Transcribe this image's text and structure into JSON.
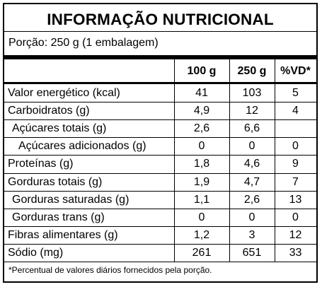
{
  "title": "INFORMAÇÃO NUTRICIONAL",
  "serving": "Porção: 250 g (1 embalagem)",
  "headers": [
    "100 g",
    "250 g",
    "%VD*"
  ],
  "rows": [
    {
      "name": "Valor energético (kcal)",
      "indent": 0,
      "c1": "41",
      "c2": "103",
      "c3": "5"
    },
    {
      "name": "Carboidratos (g)",
      "indent": 0,
      "c1": "4,9",
      "c2": "12",
      "c3": "4"
    },
    {
      "name": "Açúcares totais (g)",
      "indent": 1,
      "c1": "2,6",
      "c2": "6,6",
      "c3": ""
    },
    {
      "name": "Açúcares adicionados (g)",
      "indent": 2,
      "c1": "0",
      "c2": "0",
      "c3": "0"
    },
    {
      "name": "Proteínas (g)",
      "indent": 0,
      "c1": "1,8",
      "c2": "4,6",
      "c3": "9"
    },
    {
      "name": "Gorduras totais (g)",
      "indent": 0,
      "c1": "1,9",
      "c2": "4,7",
      "c3": "7"
    },
    {
      "name": "Gorduras saturadas (g)",
      "indent": 1,
      "c1": "1,1",
      "c2": "2,6",
      "c3": "13"
    },
    {
      "name": "Gorduras trans (g)",
      "indent": 1,
      "c1": "0",
      "c2": "0",
      "c3": "0"
    },
    {
      "name": "Fibras alimentares (g)",
      "indent": 0,
      "c1": "1,2",
      "c2": "3",
      "c3": "12"
    },
    {
      "name": "Sódio (mg)",
      "indent": 0,
      "c1": "261",
      "c2": "651",
      "c3": "33"
    }
  ],
  "footnote": "*Percentual de valores diários fornecidos pela porção."
}
